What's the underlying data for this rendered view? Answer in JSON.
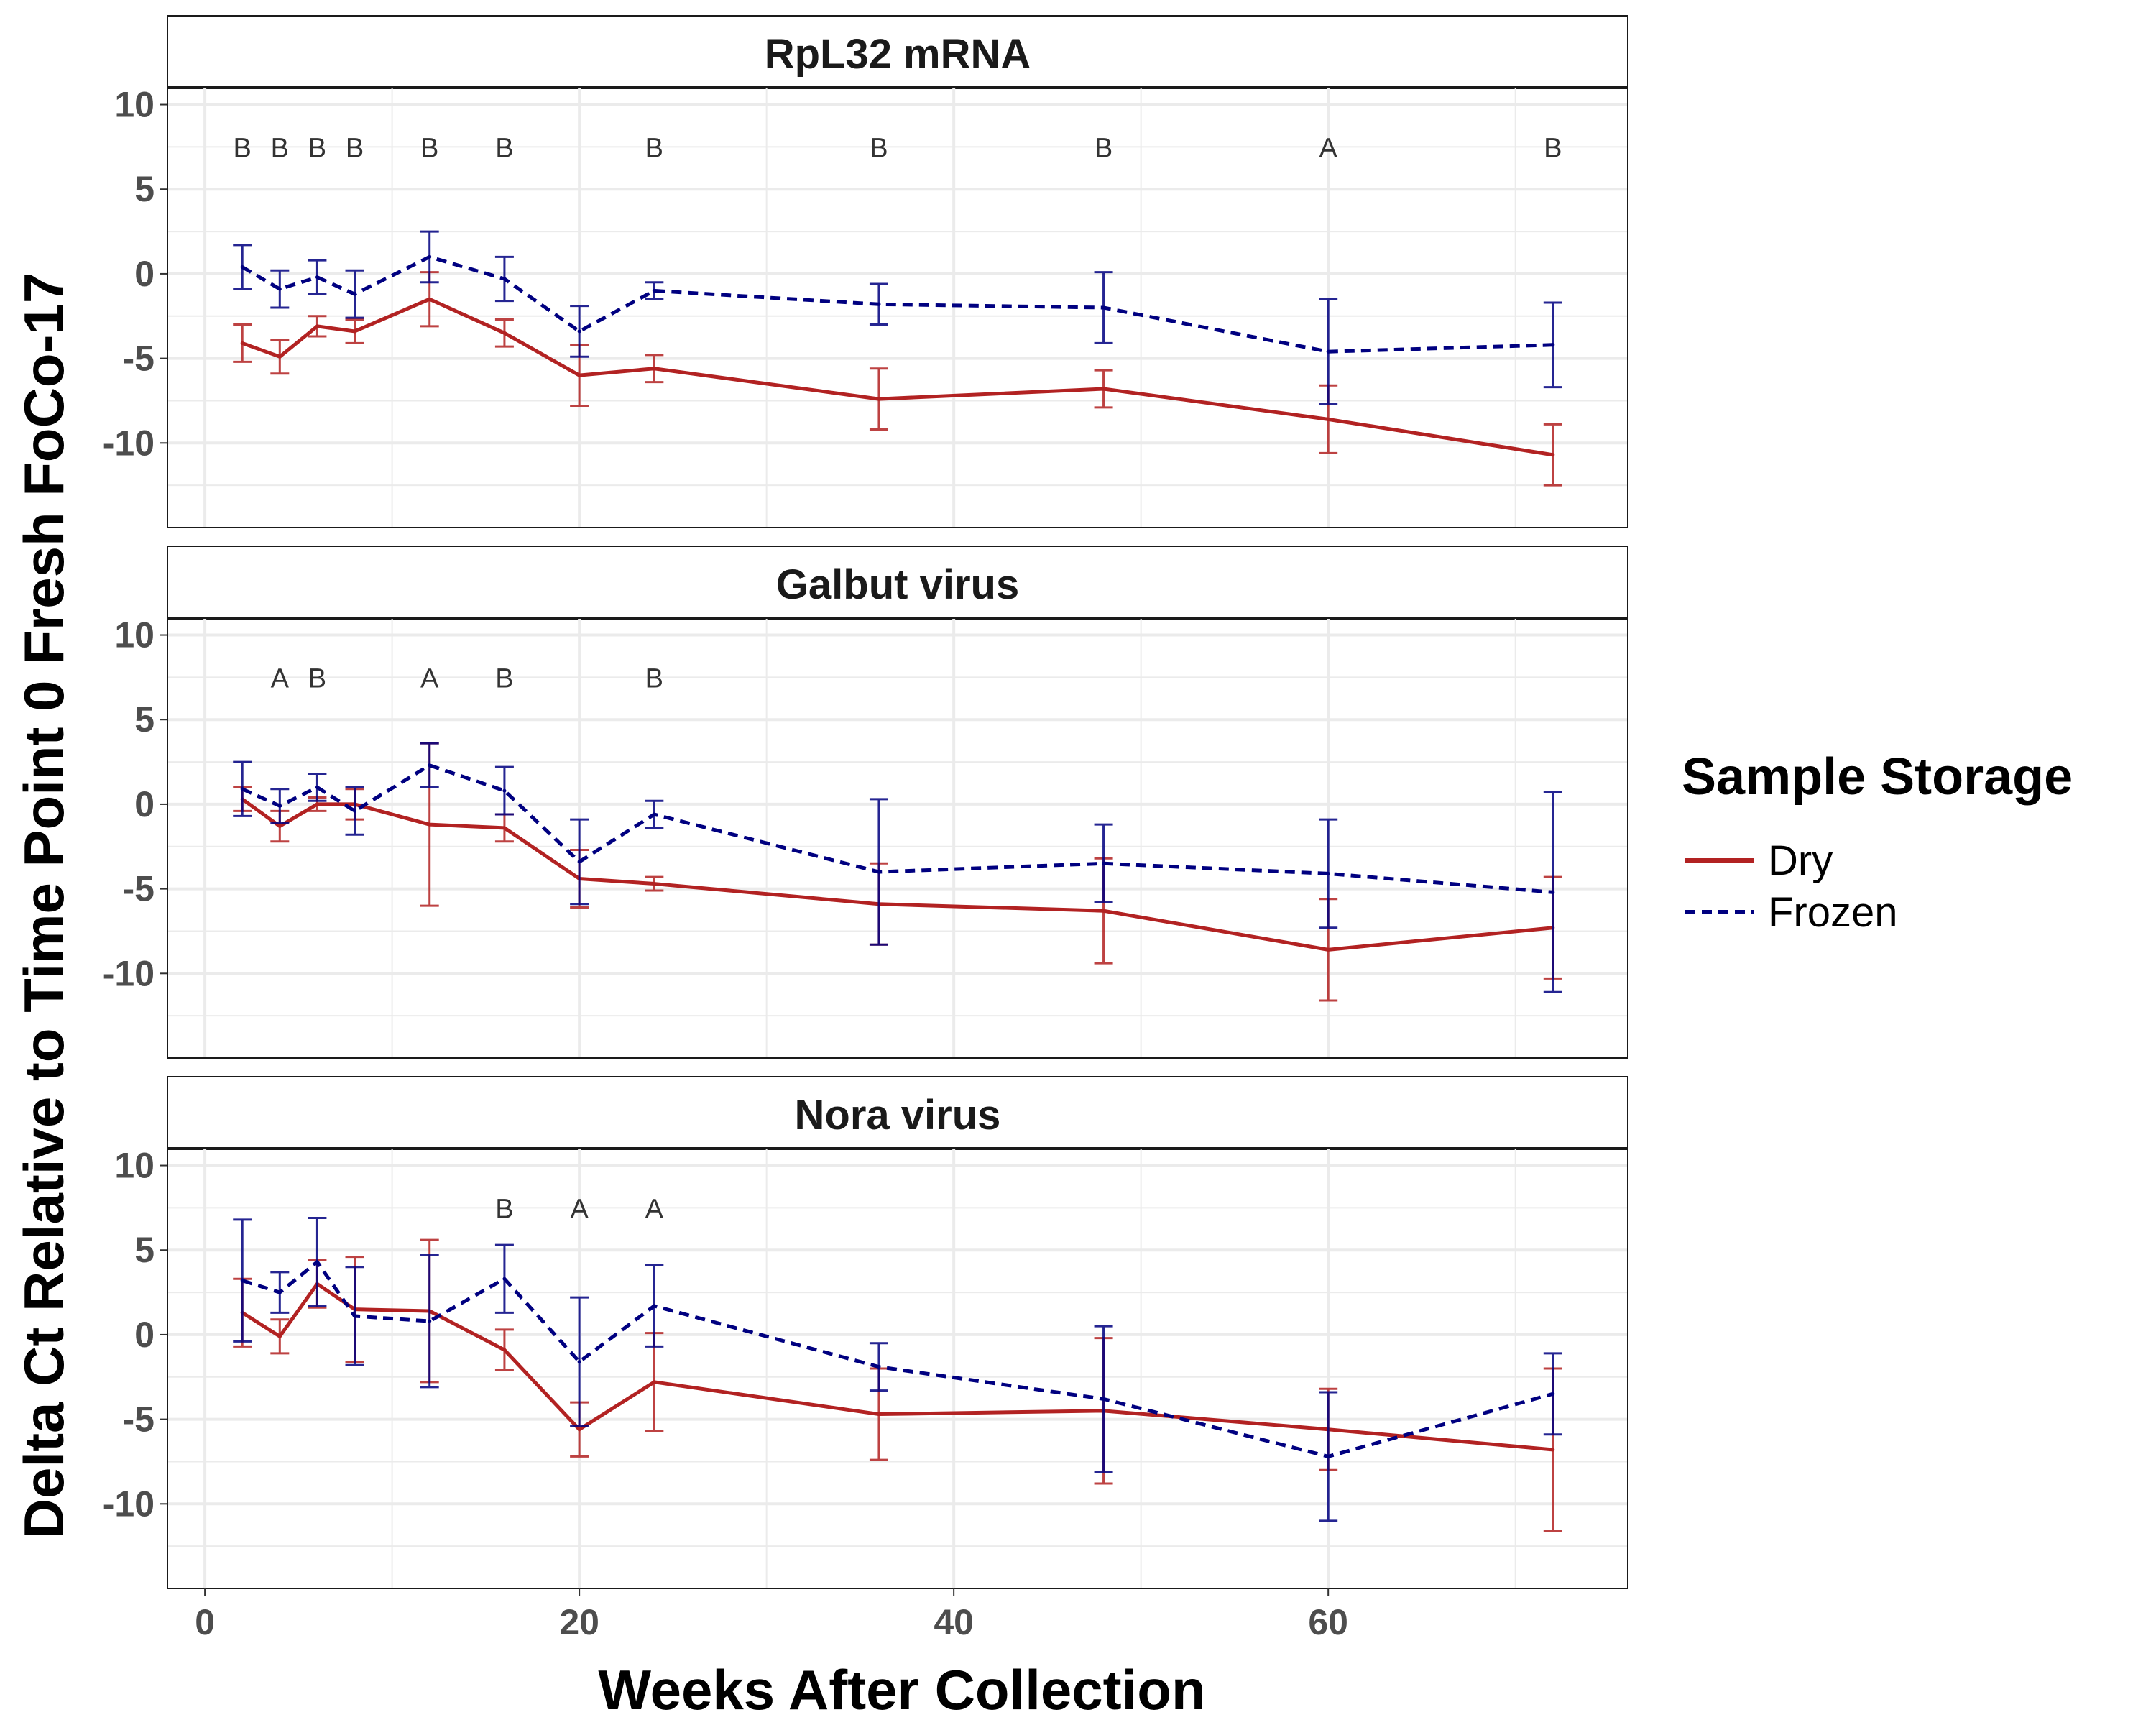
{
  "chart_data": {
    "type": "line",
    "xlabel": "Weeks After Collection",
    "ylabel": "Delta Ct Relative to Time Point 0 Fresh FoCo-17",
    "xlim": [
      -2,
      76
    ],
    "ylim": [
      -15,
      11
    ],
    "x_ticks": [
      0,
      20,
      40,
      60
    ],
    "y_ticks": [
      10,
      5,
      0,
      -5,
      -10
    ],
    "grid": true,
    "legend": {
      "title": "Sample Storage",
      "position": "right",
      "entries": [
        {
          "name": "Dry",
          "color": "#b22222",
          "dash": "solid"
        },
        {
          "name": "Frozen",
          "color": "#000080",
          "dash": "dashed"
        }
      ]
    },
    "panels": [
      {
        "title": "RpL32 mRNA",
        "series": [
          {
            "name": "Dry",
            "x": [
              2,
              4,
              6,
              8,
              12,
              16,
              20,
              24,
              36,
              48,
              60,
              72
            ],
            "y": [
              -4.1,
              -4.9,
              -3.1,
              -3.4,
              -1.5,
              -3.5,
              -6.0,
              -5.6,
              -7.4,
              -6.8,
              -8.6,
              -10.7
            ],
            "err": [
              1.1,
              1.0,
              0.6,
              0.7,
              1.6,
              0.8,
              1.8,
              0.8,
              1.8,
              1.1,
              2.0,
              1.8
            ]
          },
          {
            "name": "Frozen",
            "x": [
              2,
              4,
              6,
              8,
              12,
              16,
              20,
              24,
              36,
              48,
              60,
              72
            ],
            "y": [
              0.4,
              -0.9,
              -0.2,
              -1.2,
              1.0,
              -0.3,
              -3.4,
              -1.0,
              -1.8,
              -2.0,
              -4.6,
              -4.2
            ],
            "err": [
              1.3,
              1.1,
              1.0,
              1.4,
              1.5,
              1.3,
              1.5,
              0.5,
              1.2,
              2.1,
              3.1,
              2.5
            ]
          }
        ],
        "annotations": [
          {
            "x": 2,
            "label": "B"
          },
          {
            "x": 4,
            "label": "B"
          },
          {
            "x": 6,
            "label": "B"
          },
          {
            "x": 8,
            "label": "B"
          },
          {
            "x": 12,
            "label": "B"
          },
          {
            "x": 16,
            "label": "B"
          },
          {
            "x": 24,
            "label": "B"
          },
          {
            "x": 36,
            "label": "B"
          },
          {
            "x": 48,
            "label": "B"
          },
          {
            "x": 60,
            "label": "A"
          },
          {
            "x": 72,
            "label": "B"
          }
        ]
      },
      {
        "title": "Galbut virus",
        "series": [
          {
            "name": "Dry",
            "x": [
              2,
              4,
              6,
              8,
              12,
              16,
              20,
              24,
              36,
              48,
              60,
              72
            ],
            "y": [
              0.3,
              -1.3,
              0.0,
              0.0,
              -1.2,
              -1.4,
              -4.4,
              -4.7,
              -5.9,
              -6.3,
              -8.6,
              -7.3
            ],
            "err": [
              0.7,
              0.9,
              0.4,
              0.9,
              4.8,
              0.8,
              1.7,
              0.4,
              2.4,
              3.1,
              3.0,
              3.0
            ]
          },
          {
            "name": "Frozen",
            "x": [
              2,
              4,
              6,
              8,
              12,
              16,
              20,
              24,
              36,
              48,
              60,
              72
            ],
            "y": [
              0.9,
              -0.1,
              1.0,
              -0.4,
              2.3,
              0.8,
              -3.4,
              -0.6,
              -4.0,
              -3.5,
              -4.1,
              -5.2
            ],
            "err": [
              1.6,
              1.0,
              0.8,
              1.4,
              1.3,
              1.4,
              2.5,
              0.8,
              4.3,
              2.3,
              3.2,
              5.9
            ]
          }
        ],
        "annotations": [
          {
            "x": 4,
            "label": "A"
          },
          {
            "x": 6,
            "label": "B"
          },
          {
            "x": 12,
            "label": "A"
          },
          {
            "x": 16,
            "label": "B"
          },
          {
            "x": 24,
            "label": "B"
          }
        ]
      },
      {
        "title": "Nora virus",
        "series": [
          {
            "name": "Dry",
            "x": [
              2,
              4,
              6,
              8,
              12,
              16,
              20,
              24,
              36,
              48,
              60,
              72
            ],
            "y": [
              1.3,
              -0.1,
              3.0,
              1.5,
              1.4,
              -0.9,
              -5.6,
              -2.8,
              -4.7,
              -4.5,
              -5.6,
              -6.8
            ],
            "err": [
              2.0,
              1.0,
              1.4,
              3.1,
              4.2,
              1.2,
              1.6,
              2.9,
              2.7,
              4.3,
              2.4,
              4.8
            ]
          },
          {
            "name": "Frozen",
            "x": [
              2,
              4,
              6,
              8,
              12,
              16,
              20,
              24,
              36,
              48,
              60,
              72
            ],
            "y": [
              3.2,
              2.5,
              4.3,
              1.1,
              0.8,
              3.3,
              -1.6,
              1.7,
              -1.9,
              -3.8,
              -7.2,
              -3.5
            ],
            "err": [
              3.6,
              1.2,
              2.6,
              2.9,
              3.9,
              2.0,
              3.8,
              2.4,
              1.4,
              4.3,
              3.8,
              2.4
            ]
          }
        ],
        "annotations": [
          {
            "x": 16,
            "label": "B"
          },
          {
            "x": 20,
            "label": "A"
          },
          {
            "x": 24,
            "label": "A"
          }
        ]
      }
    ]
  }
}
